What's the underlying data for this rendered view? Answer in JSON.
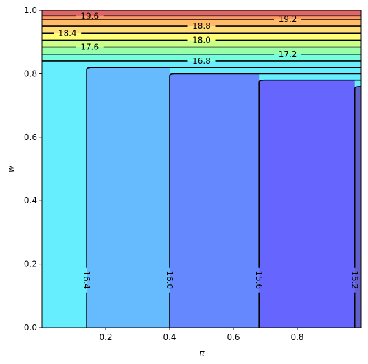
{
  "chart_data": {
    "type": "contour",
    "title": "",
    "xlabel": "π",
    "ylabel": "w",
    "xlim": [
      0.0,
      1.0
    ],
    "ylim": [
      0.0,
      1.0
    ],
    "grid": false,
    "legend": "none",
    "x_ticks": [
      "0.2",
      "0.4",
      "0.6",
      "0.8"
    ],
    "x_tick_values": [
      0.2,
      0.4,
      0.6,
      0.8
    ],
    "y_ticks": [
      "0.0",
      "0.2",
      "0.4",
      "0.6",
      "0.8",
      "1.0"
    ],
    "y_tick_values": [
      0.0,
      0.2,
      0.4,
      0.6,
      0.8,
      1.0
    ],
    "vertical_regions": [
      {
        "x_from": 0.0,
        "x_to": 0.14,
        "y_top": 0.84,
        "color": "#66eeff"
      },
      {
        "x_from": 0.14,
        "x_to": 0.4,
        "y_top": 0.82,
        "color": "#66bbff"
      },
      {
        "x_from": 0.4,
        "x_to": 0.68,
        "y_top": 0.8,
        "color": "#6688ff"
      },
      {
        "x_from": 0.68,
        "x_to": 0.98,
        "y_top": 0.78,
        "color": "#6666ff"
      },
      {
        "x_from": 0.98,
        "x_to": 1.0,
        "y_top": 0.76,
        "color": "#6060cc"
      }
    ],
    "horizontal_bands": [
      {
        "y_from": 0.84,
        "y_to": 0.862,
        "color": "#77ffdd"
      },
      {
        "y_from": 0.862,
        "y_to": 0.884,
        "color": "#99ffaa"
      },
      {
        "y_from": 0.884,
        "y_to": 0.906,
        "color": "#ccff88"
      },
      {
        "y_from": 0.906,
        "y_to": 0.928,
        "color": "#ffff77"
      },
      {
        "y_from": 0.928,
        "y_to": 0.95,
        "color": "#ffdd77"
      },
      {
        "y_from": 0.95,
        "y_to": 0.972,
        "color": "#ffbb66"
      },
      {
        "y_from": 0.972,
        "y_to": 0.982,
        "color": "#ff9966"
      },
      {
        "y_from": 0.982,
        "y_to": 1.0,
        "color": "#dd6666"
      }
    ],
    "vertical_contours": [
      {
        "level": "16.4",
        "x": 0.14,
        "y_top": 0.82,
        "label_y": 0.15
      },
      {
        "level": "16.0",
        "x": 0.4,
        "y_top": 0.8,
        "label_y": 0.15
      },
      {
        "level": "15.6",
        "x": 0.68,
        "y_top": 0.78,
        "label_y": 0.15
      },
      {
        "level": "15.2",
        "x": 0.98,
        "y_top": 0.76,
        "label_y": 0.15
      }
    ],
    "horizontal_contours": [
      {
        "level": "16.8",
        "y": 0.84,
        "label_x": 0.5
      },
      {
        "level": "17.2",
        "y": 0.862,
        "label_x": 0.77
      },
      {
        "level": "17.6",
        "y": 0.884,
        "label_x": 0.15
      },
      {
        "level": "18.0",
        "y": 0.906,
        "label_x": 0.5
      },
      {
        "level": "18.4",
        "y": 0.928,
        "label_x": 0.08
      },
      {
        "level": "18.8",
        "y": 0.95,
        "label_x": 0.5
      },
      {
        "level": "19.2",
        "y": 0.972,
        "label_x": 0.77
      },
      {
        "level": "19.6",
        "y": 0.982,
        "label_x": 0.15
      }
    ]
  }
}
